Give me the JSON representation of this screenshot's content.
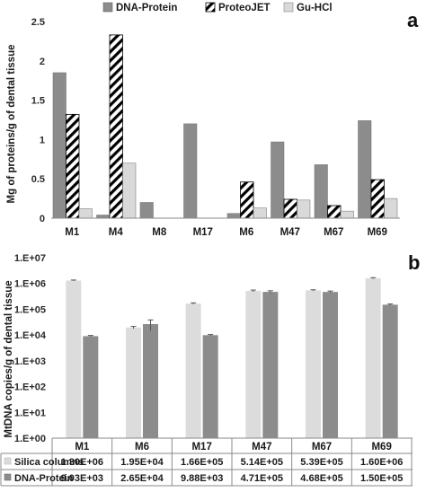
{
  "chart_data": [
    {
      "type": "bar",
      "panel_label": "a",
      "ylabel": "Mg of proteins/g of dental tissue",
      "xlabel": "",
      "ylim": [
        0,
        2.5
      ],
      "yticks": [
        "0",
        "0.5",
        "1",
        "1.5",
        "2",
        "2.5"
      ],
      "grid": false,
      "legend_position": "top",
      "categories": [
        "M1",
        "M4",
        "M8",
        "M17",
        "M6",
        "M47",
        "M67",
        "M69"
      ],
      "series": [
        {
          "name": "DNA-Protein",
          "color": "#8c8c8c",
          "pattern": "solid",
          "values": [
            1.85,
            0.04,
            0.2,
            1.2,
            0.06,
            0.97,
            0.68,
            1.24
          ]
        },
        {
          "name": "ProteoJET",
          "color": "#000000",
          "pattern": "diagonal-hatch",
          "values": [
            1.32,
            2.33,
            0,
            0,
            0.46,
            0.24,
            0.16,
            0.49
          ]
        },
        {
          "name": "Gu-HCl",
          "color": "#d9d9d9",
          "pattern": "solid",
          "values": [
            0.12,
            0.7,
            0,
            0,
            0.13,
            0.23,
            0.09,
            0.25
          ]
        }
      ]
    },
    {
      "type": "bar",
      "panel_label": "b",
      "ylabel": "MtDNA copies/g of dental tissue",
      "xlabel": "",
      "yscale": "log",
      "ylim": [
        1,
        10000000
      ],
      "yticks": [
        "1.E+00",
        "1.E+01",
        "1.E+02",
        "1.E+03",
        "1.E+04",
        "1.E+05",
        "1.E+06",
        "1.E+07"
      ],
      "grid": false,
      "legend_position": "data-table",
      "error_bars": true,
      "categories": [
        "M1",
        "M6",
        "M17",
        "M47",
        "M67",
        "M69"
      ],
      "series": [
        {
          "name": "Silica columns",
          "color": "#dcdcdc",
          "values": [
            1300000,
            19500,
            166000,
            514000,
            539000,
            1600000
          ],
          "errors": [
            60000,
            2000,
            10000,
            40000,
            30000,
            80000
          ],
          "table_text": [
            "1.30E+06",
            "1.95E+04",
            "1.66E+05",
            "5.14E+05",
            "5.39E+05",
            "1.60E+06"
          ]
        },
        {
          "name": "DNA-Protein",
          "color": "#8c8c8c",
          "values": [
            9030,
            26500,
            9880,
            471000,
            468000,
            150000
          ],
          "errors": [
            600,
            12000,
            600,
            50000,
            40000,
            10000
          ],
          "table_text": [
            "9.03E+03",
            "2.65E+04",
            "9.88E+03",
            "4.71E+05",
            "4.68E+05",
            "1.50E+05"
          ]
        }
      ]
    }
  ]
}
